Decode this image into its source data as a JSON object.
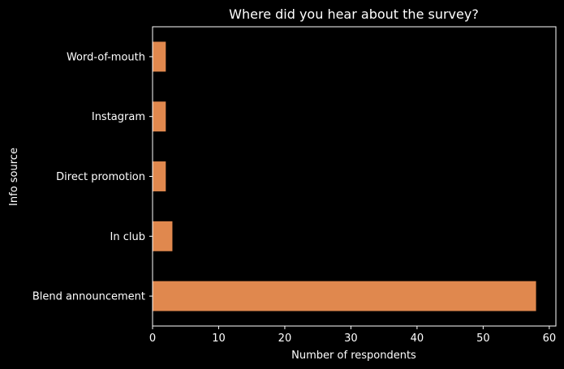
{
  "chart_data": {
    "type": "bar",
    "orientation": "horizontal",
    "title": "Where did you hear about the survey?",
    "xlabel": "Number of respondents",
    "ylabel": "Info source",
    "categories": [
      "Blend announcement",
      "In club",
      "Direct promotion",
      "Instagram",
      "Word-of-mouth"
    ],
    "values": [
      58,
      3,
      2,
      2,
      2
    ],
    "xlim": [
      0,
      61
    ],
    "xticks": [
      0,
      10,
      20,
      30,
      40,
      50,
      60
    ],
    "grid": false,
    "bar_color": "#e0884e",
    "background": "#000000",
    "text_color": "#ffffff"
  }
}
